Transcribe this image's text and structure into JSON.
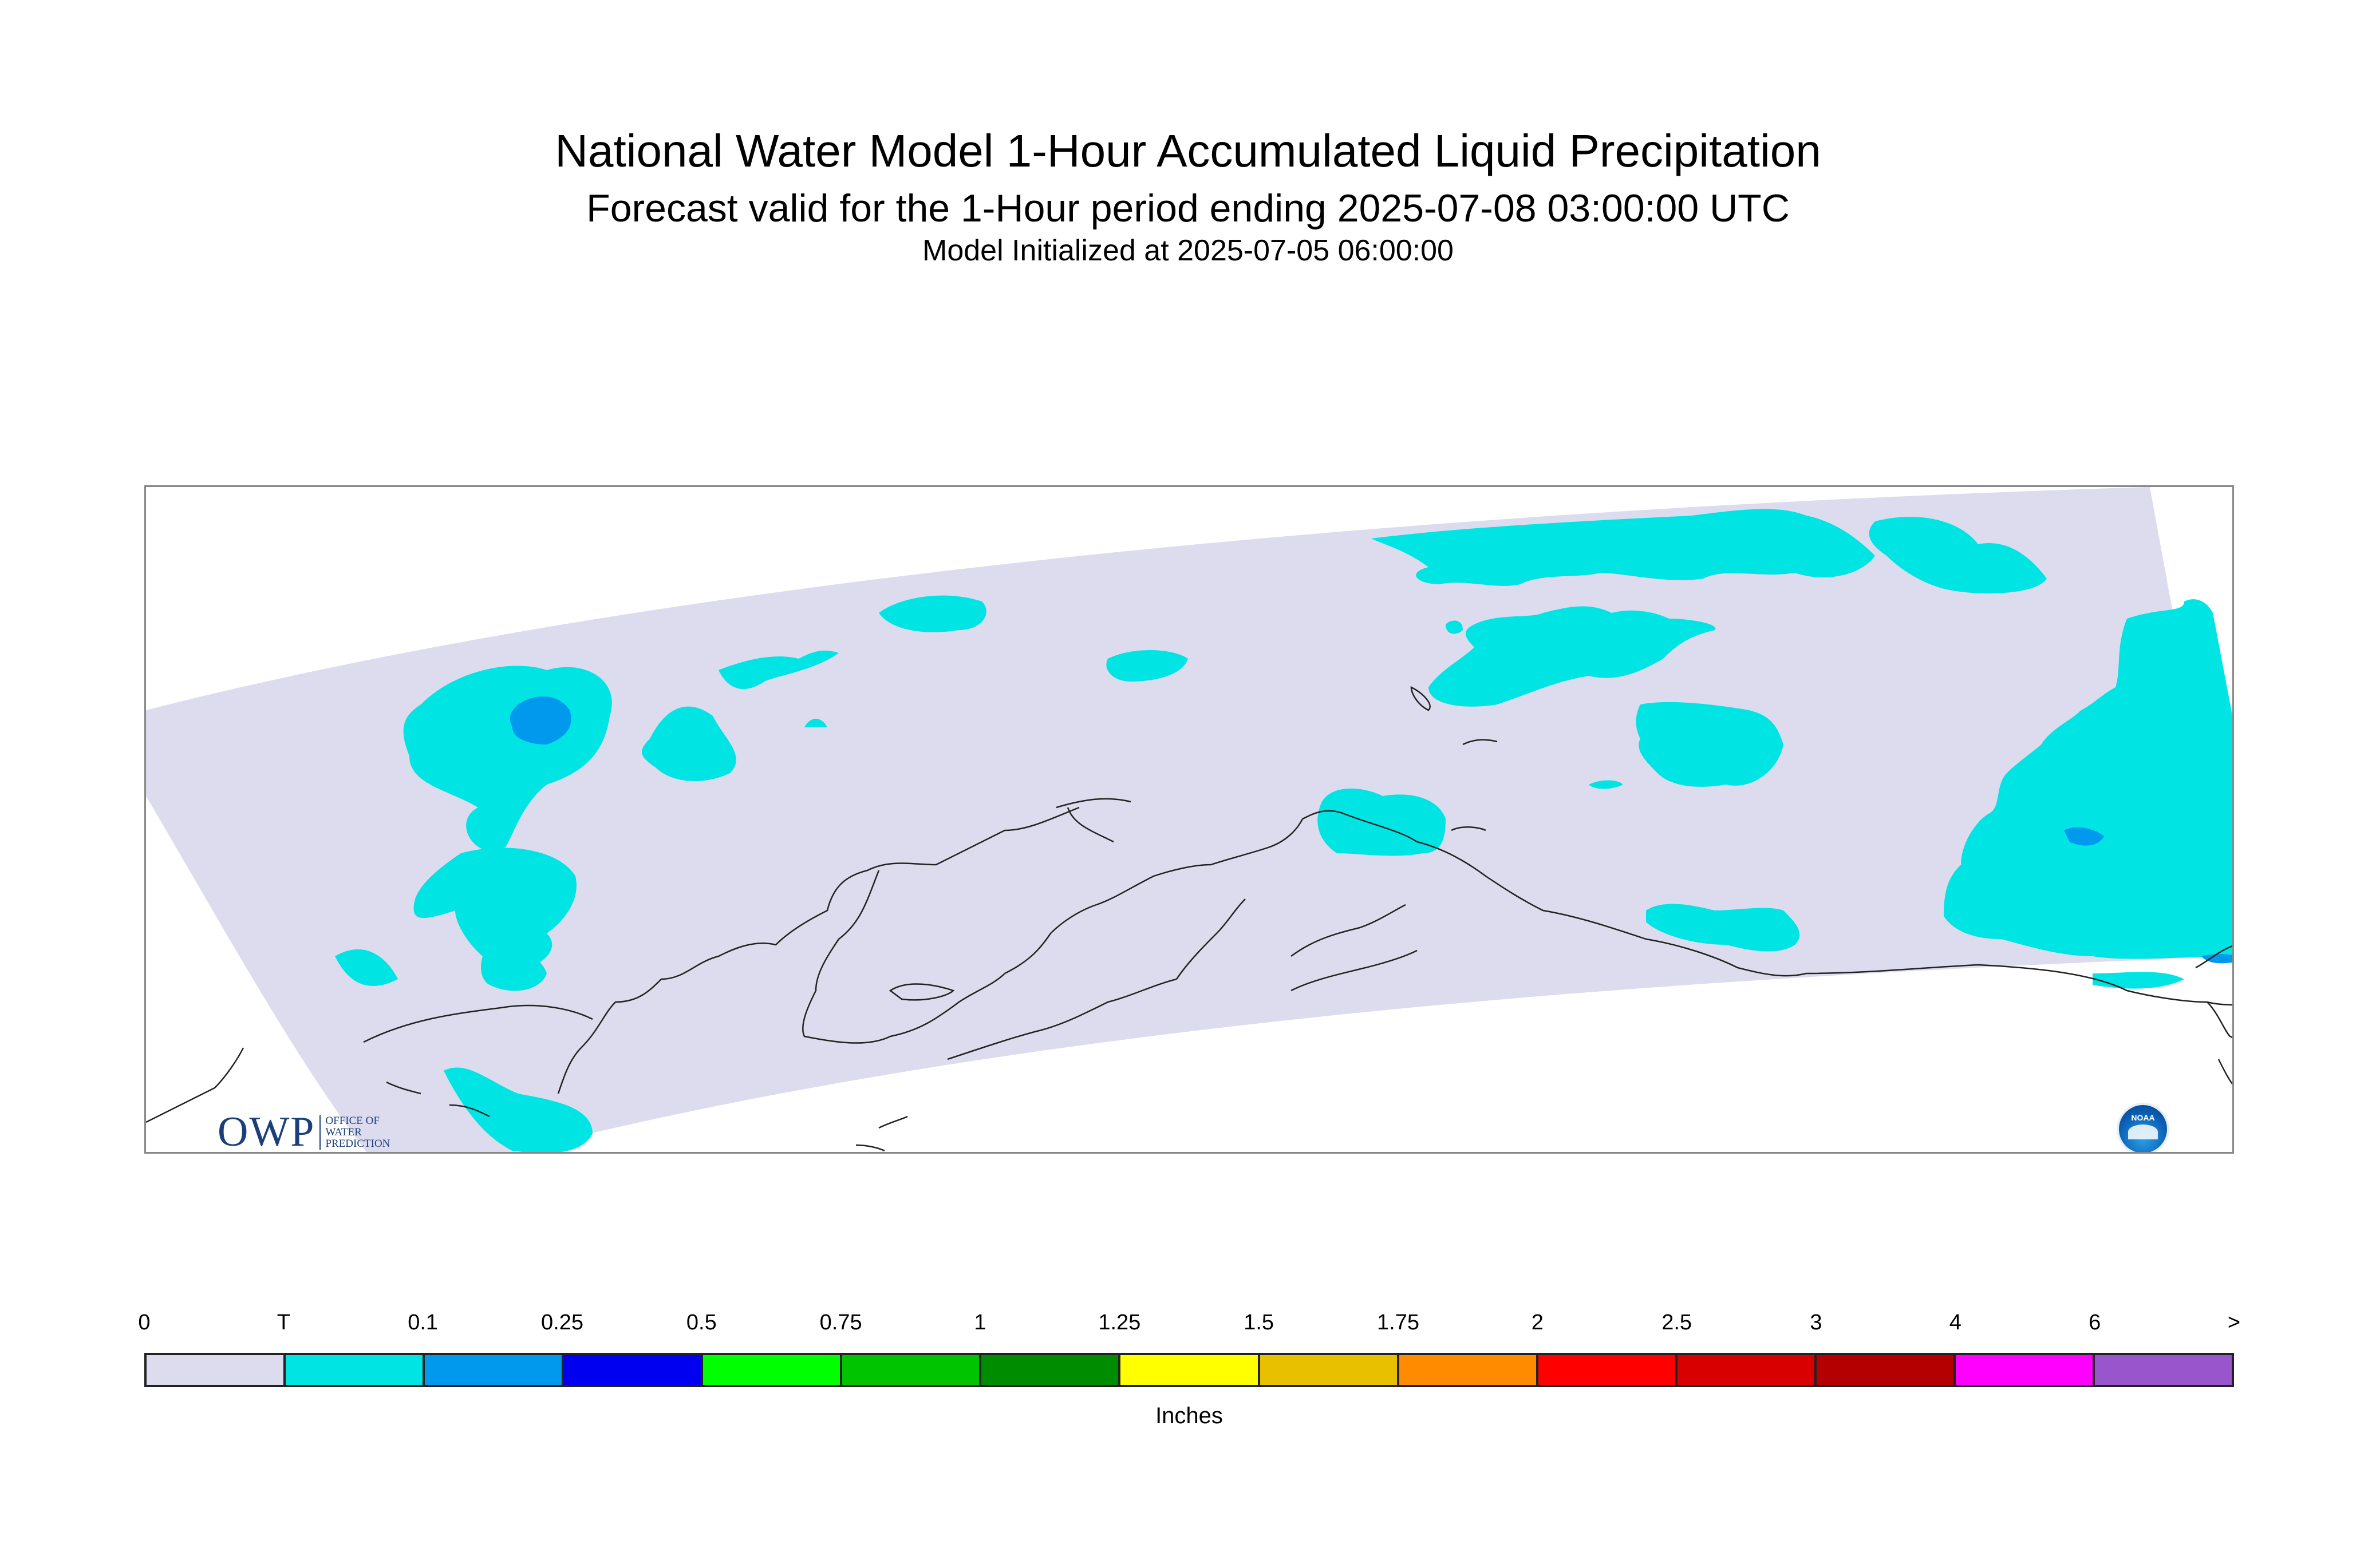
{
  "titles": {
    "main": "National Water Model 1-Hour Accumulated Liquid Precipitation",
    "sub": "Forecast valid for the 1-Hour period ending 2025-07-08 03:00:00 UTC",
    "init": "Model Initialized at 2025-07-05 06:00:00"
  },
  "map": {
    "region": "Alaska domain",
    "background_color": "#dcdcee",
    "coastline_color": "#222222"
  },
  "legend": {
    "units": "Inches",
    "labels": [
      "0",
      "T",
      "0.1",
      "0.25",
      "0.5",
      "0.75",
      "1",
      "1.25",
      "1.5",
      "1.75",
      "2",
      "2.5",
      "3",
      "4",
      "6",
      ">"
    ],
    "colors": [
      "#dcdcee",
      "#00e4e4",
      "#0099ee",
      "#0000f0",
      "#00ff00",
      "#00c400",
      "#008c00",
      "#ffff00",
      "#e8c000",
      "#ff8c00",
      "#ff0000",
      "#d80000",
      "#b40000",
      "#ff00ff",
      "#9955cc"
    ]
  },
  "logos": {
    "owp_big": "OWP",
    "owp_small": [
      "OFFICE OF",
      "WATER",
      "PREDICTION"
    ],
    "noaa": "NOAA"
  }
}
